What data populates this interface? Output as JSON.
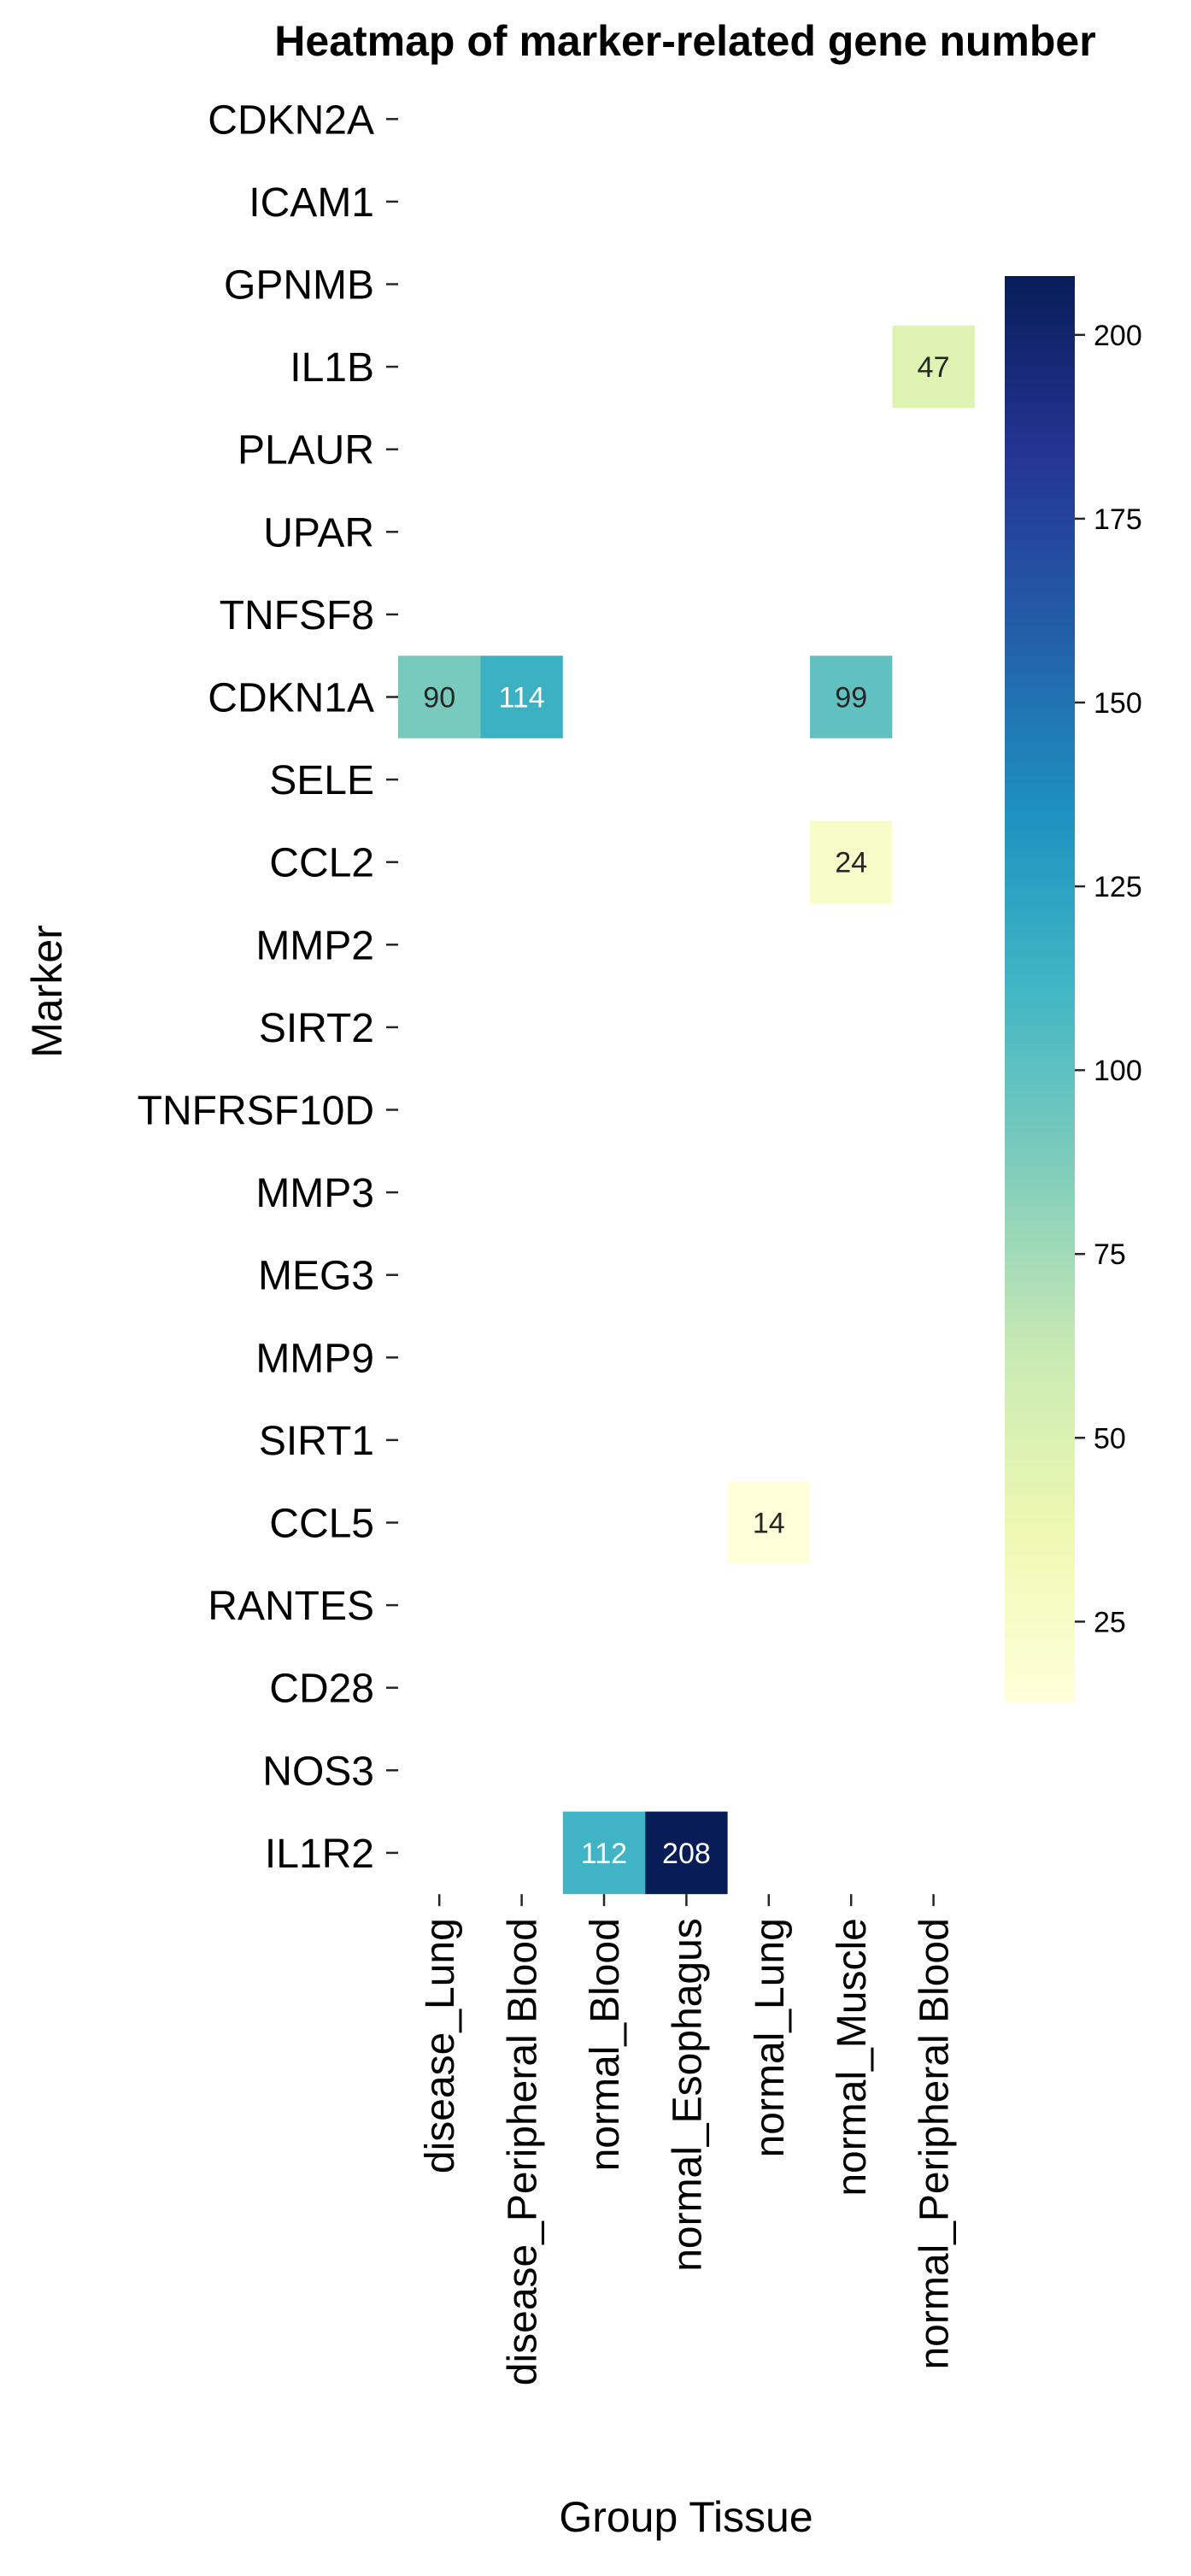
{
  "chart_data": {
    "type": "heatmap",
    "title": "Heatmap of marker-related gene number",
    "xlabel": "Group Tissue",
    "ylabel": "Marker",
    "x_categories": [
      "disease_Lung",
      "disease_Peripheral Blood",
      "normal_Blood",
      "normal_Esophagus",
      "normal_Lung",
      "normal_Muscle",
      "normal_Peripheral Blood"
    ],
    "y_categories": [
      "CDKN2A",
      "ICAM1",
      "GPNMB",
      "IL1B",
      "PLAUR",
      "UPAR",
      "TNFSF8",
      "CDKN1A",
      "SELE",
      "CCL2",
      "MMP2",
      "SIRT2",
      "TNFRSF10D",
      "MMP3",
      "MEG3",
      "MMP9",
      "SIRT1",
      "CCL5",
      "RANTES",
      "CD28",
      "NOS3",
      "IL1R2"
    ],
    "cells": [
      {
        "marker": "IL1B",
        "group": "normal_Peripheral Blood",
        "value": 47
      },
      {
        "marker": "CDKN1A",
        "group": "disease_Lung",
        "value": 90
      },
      {
        "marker": "CDKN1A",
        "group": "disease_Peripheral Blood",
        "value": 114
      },
      {
        "marker": "CDKN1A",
        "group": "normal_Muscle",
        "value": 99
      },
      {
        "marker": "CCL2",
        "group": "normal_Muscle",
        "value": 24
      },
      {
        "marker": "CCL5",
        "group": "normal_Lung",
        "value": 14
      },
      {
        "marker": "IL1R2",
        "group": "normal_Blood",
        "value": 112
      },
      {
        "marker": "IL1R2",
        "group": "normal_Esophagus",
        "value": 208
      }
    ],
    "colorbar": {
      "colormap": "YlGnBu",
      "range": [
        14,
        208
      ],
      "ticks": [
        25,
        50,
        75,
        100,
        125,
        150,
        175,
        200
      ]
    }
  }
}
